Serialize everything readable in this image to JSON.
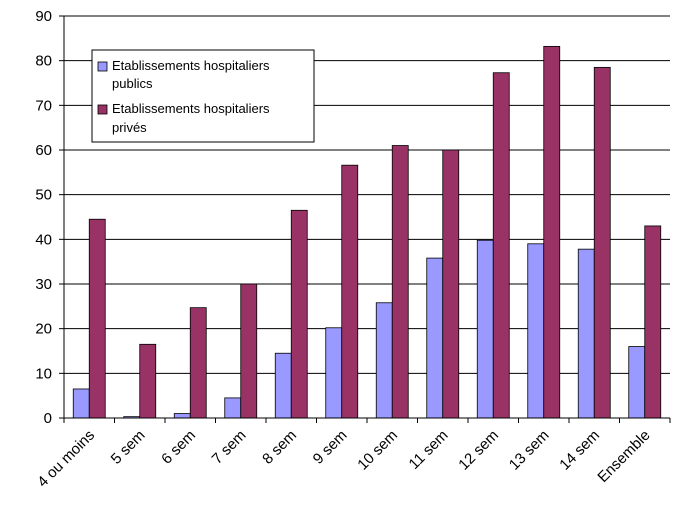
{
  "chart_data": {
    "type": "bar",
    "title": "",
    "xlabel": "",
    "ylabel": "",
    "ylim": [
      0,
      90
    ],
    "yticks": [
      0,
      10,
      20,
      30,
      40,
      50,
      60,
      70,
      80,
      90
    ],
    "grid": true,
    "legend_position": "top-left",
    "categories": [
      "4 ou moins",
      "5 sem",
      "6 sem",
      "7 sem",
      "8 sem",
      "9 sem",
      "10 sem",
      "11 sem",
      "12 sem",
      "13 sem",
      "14 sem",
      "Ensemble"
    ],
    "series": [
      {
        "name": "Etablissements hospitaliers publics",
        "legend_lines": [
          "Etablissements hospitaliers",
          "publics"
        ],
        "color": "#9999ff",
        "values": [
          6.5,
          0.3,
          1.0,
          4.5,
          14.5,
          20.2,
          25.8,
          35.8,
          39.8,
          39.0,
          37.8,
          16.0
        ]
      },
      {
        "name": "Etablissements hospitaliers privés",
        "legend_lines": [
          "Etablissements hospitaliers",
          "privés"
        ],
        "color": "#993366",
        "values": [
          44.5,
          16.5,
          24.7,
          30.0,
          46.5,
          56.6,
          61.0,
          60.0,
          77.3,
          83.2,
          78.5,
          43.0
        ]
      }
    ]
  }
}
